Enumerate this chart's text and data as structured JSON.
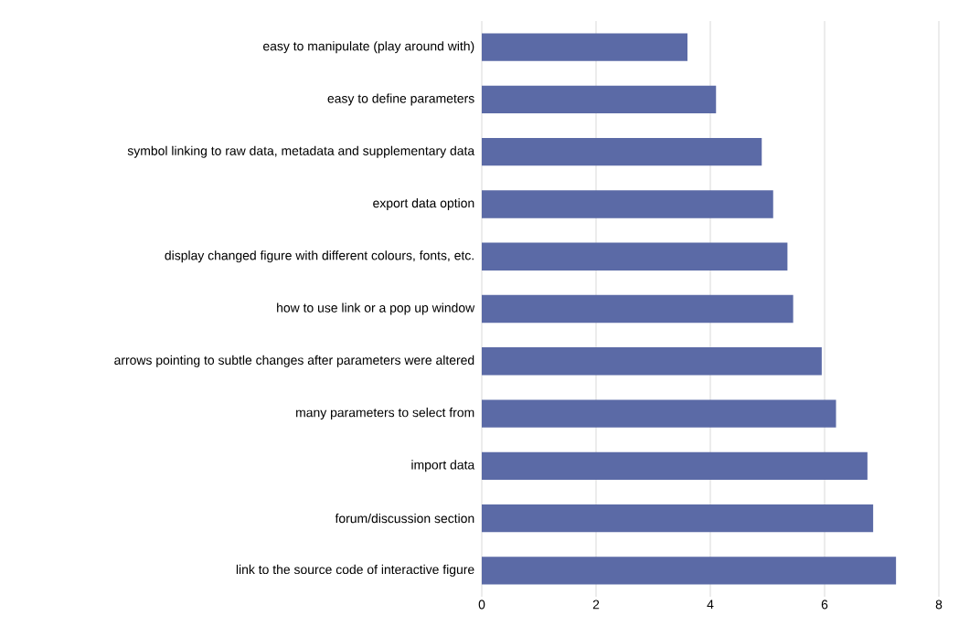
{
  "chart_data": {
    "type": "bar",
    "orientation": "horizontal",
    "categories": [
      "easy to manipulate (play around with)",
      "easy to define parameters",
      "symbol linking to raw data, metadata and supplementary data",
      "export data option",
      "display changed figure with different colours, fonts, etc.",
      "how to use link or a pop up window",
      "arrows pointing to subtle changes after parameters were altered",
      "many parameters to select from",
      "import data",
      "forum/discussion section",
      "link to the source code of interactive figure"
    ],
    "values": [
      3.6,
      4.1,
      4.9,
      5.1,
      5.35,
      5.45,
      5.95,
      6.2,
      6.75,
      6.85,
      7.25
    ],
    "color": "#5b6aa6",
    "xlim": [
      0,
      8
    ],
    "xticks": [
      0,
      2,
      4,
      6,
      8
    ],
    "grid": "x"
  }
}
